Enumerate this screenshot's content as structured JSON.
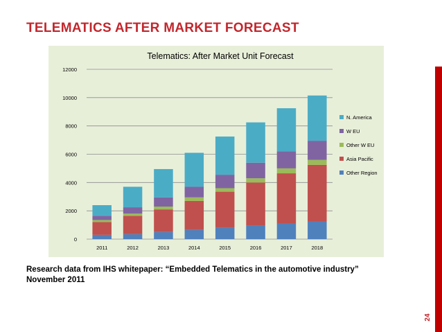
{
  "slide": {
    "title": "TELEMATICS AFTER MARKET FORECAST",
    "caption_line1": "Research data from IHS whitepaper: “Embedded Telematics in the automotive industry”",
    "caption_line2": "November 2011",
    "page_number": "24",
    "accent_color": "#c1272d"
  },
  "chart_data": {
    "type": "bar",
    "stacked": true,
    "title": "Telematics: After Market Unit Forecast",
    "xlabel": "",
    "ylabel": "",
    "ylim": [
      0,
      12000
    ],
    "yticks": [
      0,
      2000,
      4000,
      6000,
      8000,
      10000,
      12000
    ],
    "grid": true,
    "legend_position": "right",
    "categories": [
      "2011",
      "2012",
      "2013",
      "2014",
      "2015",
      "2016",
      "2017",
      "2018"
    ],
    "series": [
      {
        "name": "Other Region",
        "color": "#4f81bd",
        "values": [
          300,
          350,
          500,
          650,
          800,
          950,
          1100,
          1250
        ]
      },
      {
        "name": "Asia Pacific",
        "color": "#c0504d",
        "values": [
          900,
          1300,
          1600,
          2050,
          2550,
          3050,
          3550,
          4000
        ]
      },
      {
        "name": "Other W EU",
        "color": "#9bbb59",
        "values": [
          150,
          150,
          200,
          250,
          250,
          300,
          350,
          350
        ]
      },
      {
        "name": "W EU",
        "color": "#8064a2",
        "values": [
          300,
          450,
          650,
          750,
          950,
          1100,
          1200,
          1350
        ]
      },
      {
        "name": "N. America",
        "color": "#4bacc6",
        "values": [
          750,
          1450,
          2000,
          2400,
          2700,
          2850,
          3050,
          3200
        ]
      }
    ],
    "legend_order": [
      "N. America",
      "W EU",
      "Other W EU",
      "Asia Pacific",
      "Other Region"
    ]
  }
}
